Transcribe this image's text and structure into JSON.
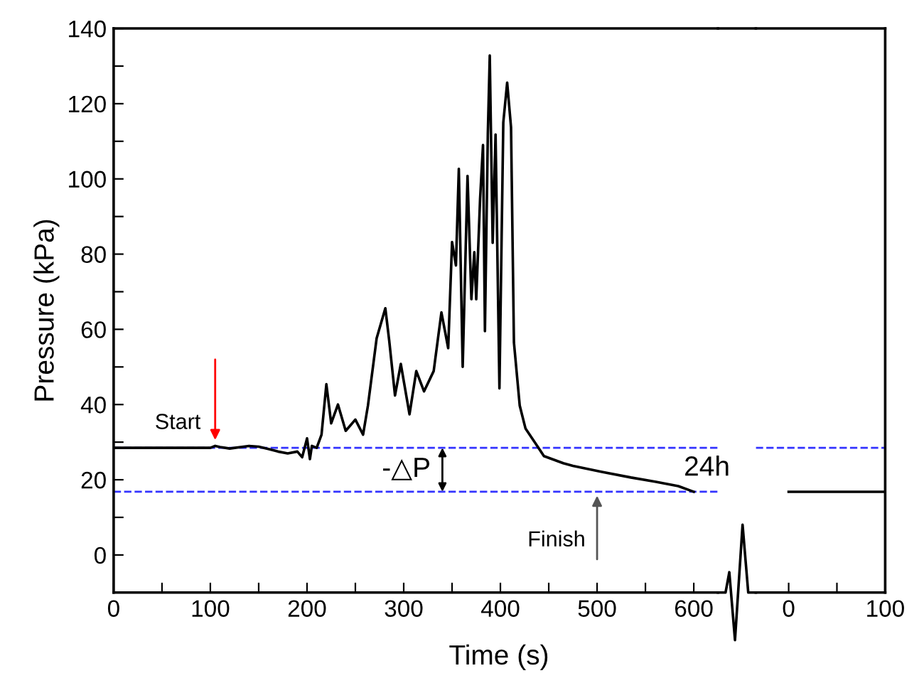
{
  "chart_data": [
    {
      "type": "line",
      "xlabel": "Time (s)",
      "ylabel": "Pressure (kPa)",
      "grid": false,
      "marker": "none",
      "line_style": "solid",
      "xlim": [
        0,
        625
      ],
      "ylim": [
        -10,
        140
      ],
      "xticks": [
        0,
        {
          "value": 50,
          "label": null
        },
        100,
        {
          "value": 150,
          "label": null
        },
        200,
        {
          "value": 250,
          "label": null
        },
        300,
        {
          "value": 350,
          "label": null
        },
        400,
        {
          "value": 450,
          "label": null
        },
        500,
        {
          "value": 550,
          "label": null
        },
        600
      ],
      "yticks": [
        {
          "value": -10,
          "label": null
        },
        0,
        {
          "value": 10,
          "label": null
        },
        20,
        {
          "value": 30,
          "label": null
        },
        40,
        {
          "value": 50,
          "label": null
        },
        60,
        {
          "value": 70,
          "label": null
        },
        80,
        {
          "value": 90,
          "label": null
        },
        100,
        {
          "value": 110,
          "label": null
        },
        120,
        {
          "value": 130,
          "label": null
        },
        140
      ],
      "tick_labels": "xy",
      "series": [
        {
          "color": "#000000",
          "x": [
            0,
            100,
            105,
            110,
            120,
            140,
            150,
            160,
            170,
            180,
            190,
            195,
            200,
            203,
            205,
            210,
            215,
            220,
            225,
            232,
            240,
            250,
            258,
            263,
            272,
            281,
            285,
            291,
            297,
            306,
            313,
            321,
            331,
            339,
            346,
            350,
            354,
            357,
            361,
            366,
            370,
            373,
            375,
            379,
            382,
            384,
            387,
            389,
            392,
            395,
            399,
            403,
            407,
            411,
            414,
            420,
            426,
            436,
            445,
            465,
            475,
            505,
            535,
            560,
            584,
            600
          ],
          "values": [
            28.5,
            28.5,
            29,
            28.7,
            28.3,
            29,
            28.8,
            28.2,
            27.5,
            27,
            27.5,
            26,
            31,
            25.5,
            29,
            28.5,
            32,
            45.4,
            35,
            40,
            33,
            36,
            32,
            39.7,
            57.6,
            65.6,
            57,
            42.4,
            50.8,
            37.4,
            48.9,
            43.5,
            48.9,
            64.5,
            55,
            83.2,
            77,
            102.7,
            50,
            100.8,
            68,
            80.5,
            68,
            94.7,
            109,
            59.5,
            112,
            132.8,
            83,
            111.8,
            44.3,
            115,
            125.6,
            113.7,
            56.5,
            39.7,
            33.6,
            29.8,
            26.3,
            24.4,
            23.7,
            22.1,
            20.6,
            19.5,
            18.3,
            16.8
          ]
        }
      ],
      "ref_lines": [
        {
          "axis": "y",
          "value": 28.5,
          "color": "#3333ff",
          "line_style": "dashed"
        },
        {
          "axis": "y",
          "value": 16.8,
          "color": "#3333ff",
          "line_style": "dashed"
        }
      ],
      "annotations": [
        {
          "text": "Start",
          "x": 105,
          "y": 29
        },
        "-△P",
        {
          "text": "Finish",
          "x": 500,
          "y": 16.8
        }
      ]
    },
    {
      "type": "line",
      "grid": false,
      "marker": "none",
      "line_style": "solid",
      "xlim": [
        -34,
        100
      ],
      "ylim": [
        -10,
        140
      ],
      "xticks": [
        0,
        {
          "value": 50,
          "label": null
        },
        100
      ],
      "tick_labels": "x",
      "series": [
        {
          "color": "#000000",
          "x": [
            0,
            100
          ],
          "values": [
            16.8,
            16.8
          ]
        }
      ],
      "ref_lines": [
        {
          "axis": "y",
          "value": 28.5,
          "color": "#3333ff",
          "line_style": "dashed"
        }
      ],
      "annotations": [
        "24h"
      ]
    }
  ]
}
